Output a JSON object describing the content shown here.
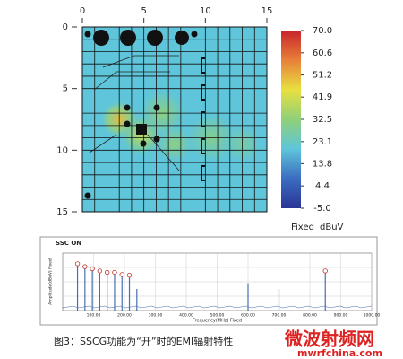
{
  "heatmap": {
    "xlim": [
      0,
      15
    ],
    "ylim": [
      0,
      15
    ],
    "y_inverted": true,
    "xticks": [
      0,
      5,
      10,
      15
    ],
    "yticks": [
      0,
      5,
      10,
      15
    ],
    "grid_step": 1,
    "background": 20,
    "hotspots": [
      {
        "x": 3.0,
        "y": 7.5,
        "r": 1.6,
        "value": 50
      },
      {
        "x": 4.8,
        "y": 8.8,
        "r": 1.8,
        "value": 40
      },
      {
        "x": 6.5,
        "y": 7.0,
        "r": 2.0,
        "value": 32
      },
      {
        "x": 7.5,
        "y": 9.5,
        "r": 1.6,
        "value": 32
      },
      {
        "x": 10.5,
        "y": 9.0,
        "r": 2.2,
        "value": 30
      },
      {
        "x": 13.0,
        "y": 9.5,
        "r": 1.6,
        "value": 28
      }
    ]
  },
  "colorbar": {
    "lim": [
      -5,
      70
    ],
    "colors": [
      "#2b3596",
      "#3a6cc0",
      "#5fc5da",
      "#8fd07a",
      "#e8e040",
      "#e8803a",
      "#c8242a"
    ],
    "ticks": [
      {
        "value": 70,
        "label": "70.0"
      },
      {
        "value": 60.6,
        "label": "60.6"
      },
      {
        "value": 51.2,
        "label": "51.2"
      },
      {
        "value": 41.9,
        "label": "41.9"
      },
      {
        "value": 32.5,
        "label": "32.5"
      },
      {
        "value": 23.1,
        "label": "23.1"
      },
      {
        "value": 13.8,
        "label": "13.8"
      },
      {
        "value": 4.4,
        "label": "4.4"
      },
      {
        "value": -5,
        "label": "-5.0"
      }
    ],
    "mode": "Fixed",
    "unit": "dBuV"
  },
  "spectrum": {
    "title": "SSC ON",
    "y_label": "Amplitude(dBuV) Fixed",
    "x_label": "Frequency(MHz) Fixed",
    "xlim": [
      0,
      1000
    ],
    "ylim": [
      0,
      80
    ],
    "xticks": [
      {
        "value": 100,
        "label": "100.00"
      },
      {
        "value": 200,
        "label": "200.00"
      },
      {
        "value": 300,
        "label": "300.00"
      },
      {
        "value": 400,
        "label": "400.00"
      },
      {
        "value": 500,
        "label": "500.00"
      },
      {
        "value": 600,
        "label": "600.00"
      },
      {
        "value": 700,
        "label": "700.00"
      },
      {
        "value": 800,
        "label": "800.00"
      },
      {
        "value": 900,
        "label": "900.00"
      },
      {
        "value": 1000,
        "label": "1000.00"
      }
    ],
    "color": "#4a6fb0",
    "marker_color": "#c03030",
    "peaks": [
      {
        "f": 48,
        "amp": 62,
        "marker": true
      },
      {
        "f": 72,
        "amp": 58,
        "marker": true
      },
      {
        "f": 96,
        "amp": 55,
        "marker": true
      },
      {
        "f": 120,
        "amp": 52,
        "marker": true
      },
      {
        "f": 144,
        "amp": 50,
        "marker": true
      },
      {
        "f": 168,
        "amp": 50,
        "marker": true
      },
      {
        "f": 192,
        "amp": 47,
        "marker": true
      },
      {
        "f": 216,
        "amp": 46,
        "marker": true
      },
      {
        "f": 240,
        "amp": 30,
        "marker": false
      },
      {
        "f": 600,
        "amp": 38,
        "marker": false
      },
      {
        "f": 700,
        "amp": 30,
        "marker": false
      },
      {
        "f": 850,
        "amp": 52,
        "marker": true
      }
    ]
  },
  "caption": "图3：SSCG功能为“开”时的EMI辐射特性",
  "watermark": {
    "name": "微波射频网",
    "url": "mwrfchina.com"
  }
}
